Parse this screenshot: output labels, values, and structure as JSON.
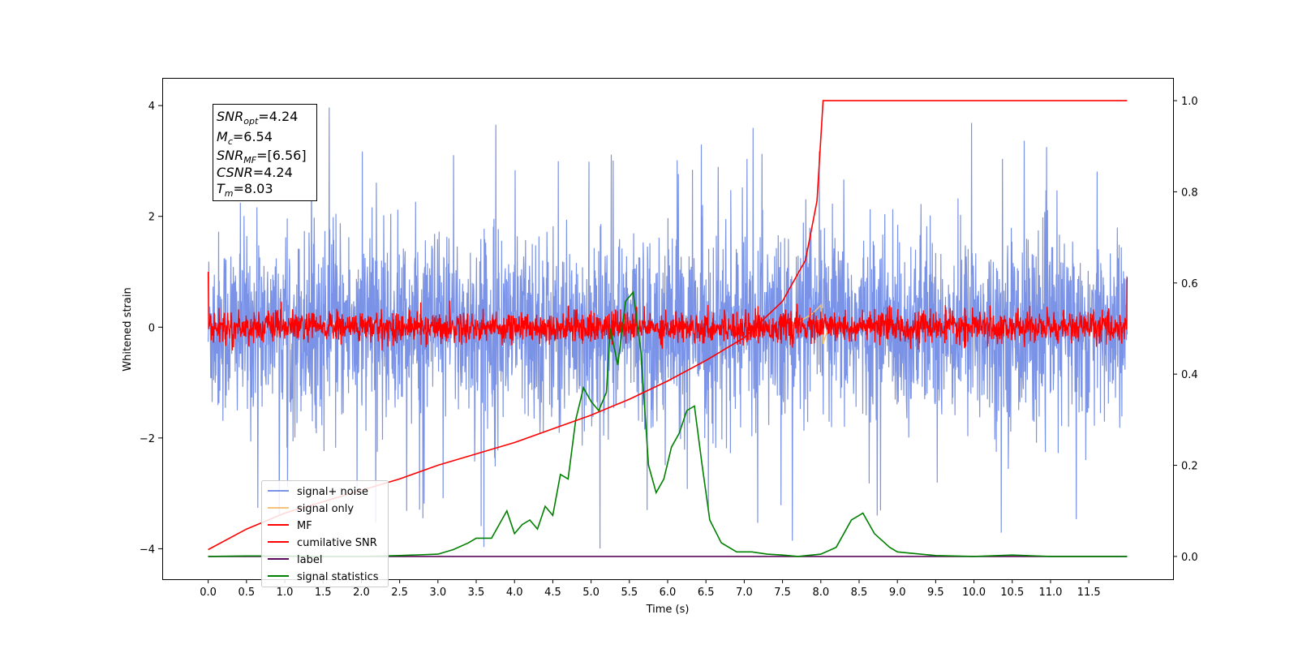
{
  "colors": {
    "signal_noise": "#7b93e6",
    "signal_only": "#f5c27a",
    "mf": "#ff0000",
    "cumulative_snr": "#ff0000",
    "label": "#5b0a5b",
    "signal_statistics": "#008000"
  },
  "info_box": {
    "snr_opt": {
      "main": "SNR",
      "sub": "opt",
      "value": "=4.24"
    },
    "mc": {
      "main": "M",
      "sub": "c",
      "value": "=6.54"
    },
    "snr_mf": {
      "main": "SNR",
      "sub": "MF",
      "value": "=[6.56]"
    },
    "csnr": {
      "main": "CSNR",
      "sub": "",
      "value": "=4.24"
    },
    "tm": {
      "main": "T",
      "sub": "m",
      "value": "=8.03"
    }
  },
  "chart_data": {
    "type": "line",
    "xlabel": "Time (s)",
    "ylabel": "Whitened strain",
    "xlim": [
      -0.6,
      12.6
    ],
    "ylim_left": [
      -4.55,
      4.5
    ],
    "ylim_right": [
      -0.05,
      1.05
    ],
    "x_ticks": [
      "0.0",
      "0.5",
      "1.0",
      "1.5",
      "2.0",
      "2.5",
      "3.0",
      "3.5",
      "4.0",
      "4.5",
      "5.0",
      "5.5",
      "6.0",
      "6.5",
      "7.0",
      "7.5",
      "8.0",
      "8.5",
      "9.0",
      "9.5",
      "10.0",
      "10.5",
      "11.0",
      "11.5"
    ],
    "y_ticks_left": [
      "-4",
      "-2",
      "0",
      "2",
      "4"
    ],
    "y_ticks_right": [
      "0.0",
      "0.2",
      "0.4",
      "0.6",
      "0.8",
      "1.0"
    ],
    "legend_position": "lower-left",
    "legend": [
      "signal+ noise",
      "signal only",
      "MF",
      "cumilative SNR",
      "label",
      "signal statistics"
    ],
    "series": [
      {
        "name": "signal+ noise",
        "axis": "left",
        "description_values": "whitened noise, amplitude approx 1.5-2.5 typical, peaks to approx 4.1 and -4.1, t from 0 to 12"
      },
      {
        "name": "signal only",
        "axis": "left",
        "points": [
          [
            7.6,
            0.0
          ],
          [
            7.9,
            0.25
          ],
          [
            8.0,
            0.4
          ],
          [
            8.03,
            -0.3
          ],
          [
            8.1,
            0.0
          ]
        ]
      },
      {
        "name": "MF",
        "axis": "left",
        "description_values": "matched-filter output, amplitude approx 0.3-0.5 around 0, t from 0 to 12"
      },
      {
        "name": "cumilative SNR",
        "axis": "right",
        "points": [
          [
            0.0,
            0.015
          ],
          [
            0.5,
            0.06
          ],
          [
            1.0,
            0.095
          ],
          [
            1.5,
            0.12
          ],
          [
            2.0,
            0.145
          ],
          [
            2.5,
            0.17
          ],
          [
            3.0,
            0.2
          ],
          [
            3.5,
            0.225
          ],
          [
            4.0,
            0.25
          ],
          [
            4.5,
            0.28
          ],
          [
            5.0,
            0.31
          ],
          [
            5.5,
            0.345
          ],
          [
            6.0,
            0.385
          ],
          [
            6.5,
            0.43
          ],
          [
            7.0,
            0.48
          ],
          [
            7.5,
            0.56
          ],
          [
            7.8,
            0.65
          ],
          [
            7.95,
            0.78
          ],
          [
            8.03,
            1.0
          ],
          [
            12.0,
            1.0
          ]
        ]
      },
      {
        "name": "label",
        "axis": "right",
        "points": [
          [
            0.0,
            0.0
          ],
          [
            12.0,
            0.0
          ]
        ]
      },
      {
        "name": "signal statistics",
        "axis": "right",
        "points": [
          [
            0.0,
            0.0
          ],
          [
            0.5,
            0.001
          ],
          [
            1.0,
            0.001
          ],
          [
            1.5,
            0.0
          ],
          [
            2.0,
            0.0
          ],
          [
            2.5,
            0.002
          ],
          [
            3.0,
            0.005
          ],
          [
            3.2,
            0.015
          ],
          [
            3.4,
            0.03
          ],
          [
            3.5,
            0.04
          ],
          [
            3.7,
            0.04
          ],
          [
            3.8,
            0.07
          ],
          [
            3.9,
            0.1
          ],
          [
            4.0,
            0.05
          ],
          [
            4.1,
            0.07
          ],
          [
            4.2,
            0.08
          ],
          [
            4.3,
            0.06
          ],
          [
            4.4,
            0.11
          ],
          [
            4.5,
            0.09
          ],
          [
            4.6,
            0.18
          ],
          [
            4.7,
            0.17
          ],
          [
            4.8,
            0.3
          ],
          [
            4.9,
            0.37
          ],
          [
            5.0,
            0.34
          ],
          [
            5.1,
            0.32
          ],
          [
            5.2,
            0.36
          ],
          [
            5.25,
            0.5
          ],
          [
            5.35,
            0.42
          ],
          [
            5.45,
            0.56
          ],
          [
            5.55,
            0.58
          ],
          [
            5.65,
            0.45
          ],
          [
            5.75,
            0.2
          ],
          [
            5.85,
            0.14
          ],
          [
            5.95,
            0.17
          ],
          [
            6.05,
            0.24
          ],
          [
            6.15,
            0.27
          ],
          [
            6.25,
            0.32
          ],
          [
            6.35,
            0.33
          ],
          [
            6.45,
            0.2
          ],
          [
            6.55,
            0.08
          ],
          [
            6.7,
            0.03
          ],
          [
            6.9,
            0.01
          ],
          [
            7.1,
            0.01
          ],
          [
            7.3,
            0.005
          ],
          [
            7.5,
            0.003
          ],
          [
            7.7,
            0.0
          ],
          [
            8.0,
            0.005
          ],
          [
            8.2,
            0.02
          ],
          [
            8.4,
            0.08
          ],
          [
            8.55,
            0.095
          ],
          [
            8.7,
            0.05
          ],
          [
            8.9,
            0.02
          ],
          [
            9.0,
            0.01
          ],
          [
            9.5,
            0.002
          ],
          [
            10.0,
            0.0
          ],
          [
            10.5,
            0.003
          ],
          [
            11.0,
            0.0
          ],
          [
            11.5,
            0.0
          ],
          [
            12.0,
            0.0
          ]
        ]
      }
    ]
  }
}
